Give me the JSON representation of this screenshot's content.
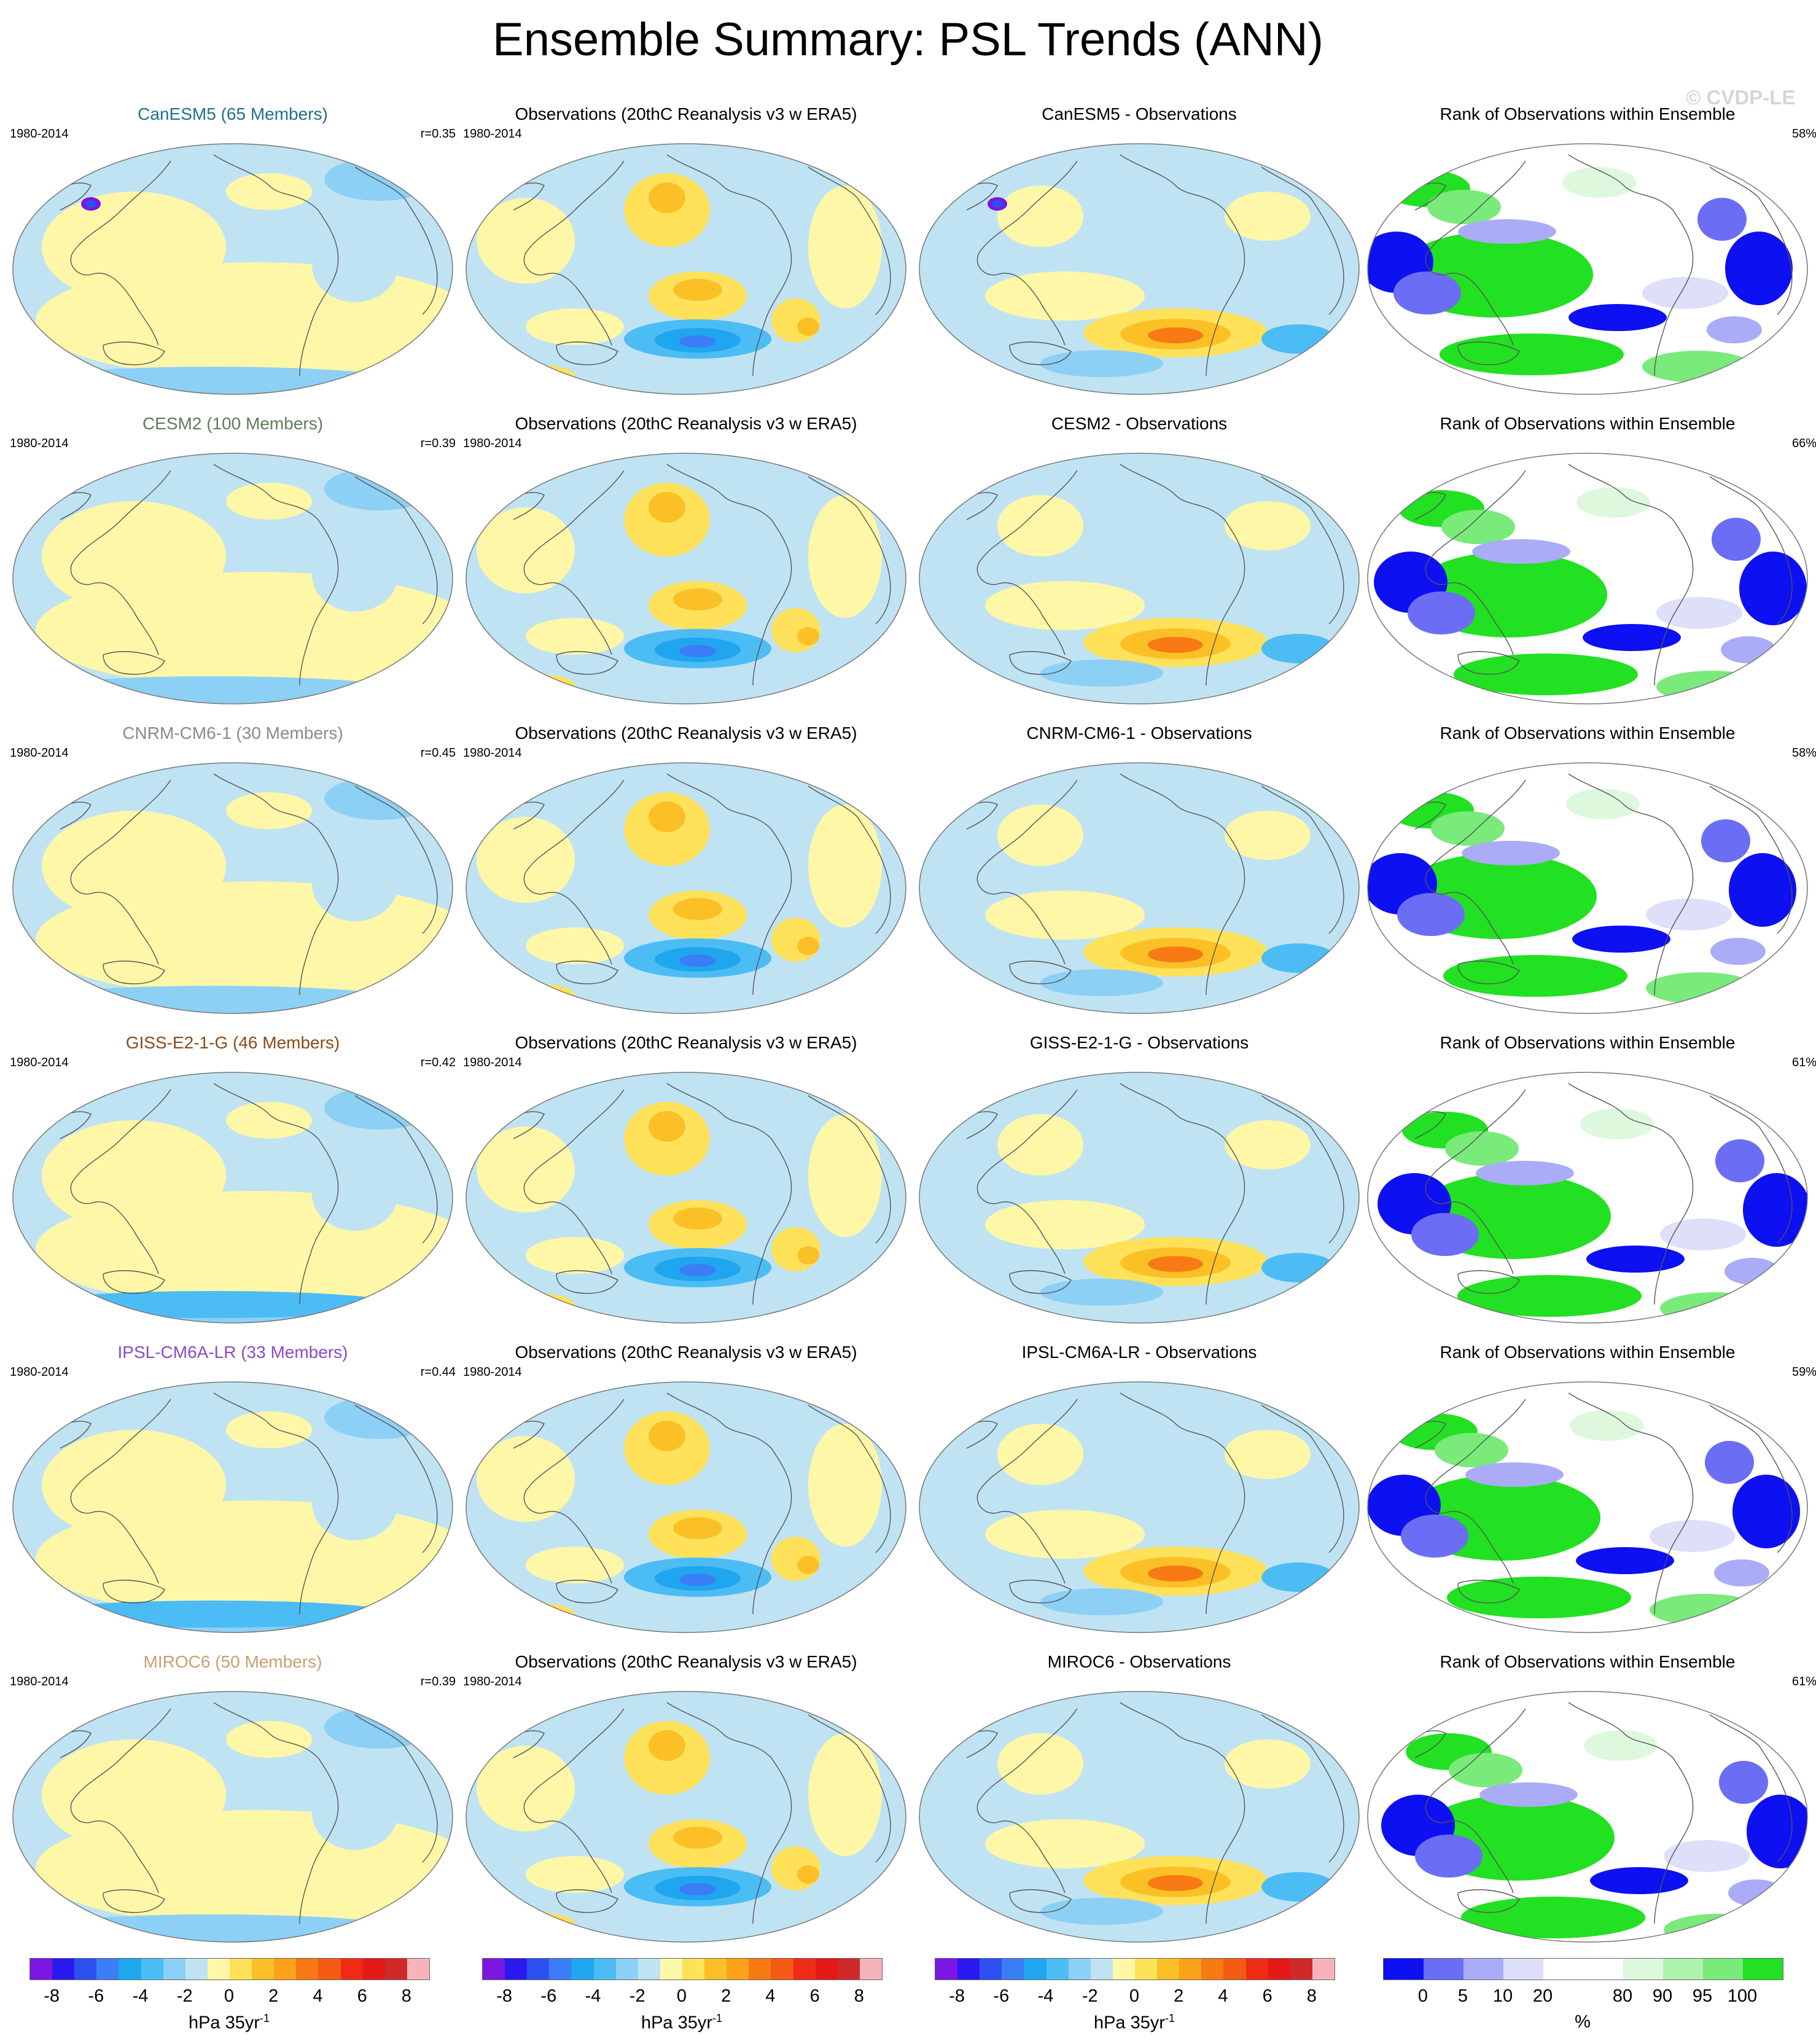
{
  "title": "Ensemble Summary: PSL Trends (ANN)",
  "watermark": "© CVDP-LE",
  "period": "1980-2014",
  "obs_title": "Observations (20thC Reanalysis v3 w ERA5)",
  "rank_title": "Rank of Observations within Ensemble",
  "rows": [
    {
      "model_title": "CanESM5 (65 Members)",
      "model_color": "#22708a",
      "r": "r=0.35",
      "diff_title": "CanESM5 - Observations",
      "pct": "58%"
    },
    {
      "model_title": "CESM2 (100 Members)",
      "model_color": "#5a7f5a",
      "r": "r=0.39",
      "diff_title": "CESM2 - Observations",
      "pct": "66%"
    },
    {
      "model_title": "CNRM-CM6-1 (30 Members)",
      "model_color": "#8a8a8a",
      "r": "r=0.45",
      "diff_title": "CNRM-CM6-1 - Observations",
      "pct": "58%"
    },
    {
      "model_title": "GISS-E2-1-G (46 Members)",
      "model_color": "#8a4a18",
      "r": "r=0.42",
      "diff_title": "GISS-E2-1-G - Observations",
      "pct": "61%"
    },
    {
      "model_title": "IPSL-CM6A-LR (33 Members)",
      "model_color": "#8a4ac8",
      "r": "r=0.44",
      "diff_title": "IPSL-CM6A-LR - Observations",
      "pct": "59%"
    },
    {
      "model_title": "MIROC6 (50 Members)",
      "model_color": "#c8a070",
      "r": "r=0.39",
      "diff_title": "MIROC6 - Observations",
      "pct": "61%"
    }
  ],
  "trend_colorbar": {
    "colors": [
      "#7b16e3",
      "#2a18f0",
      "#2e4ff0",
      "#3a7df5",
      "#1fa6ef",
      "#4cbcf4",
      "#8dd0f5",
      "#bfe3f3",
      "#fff7a8",
      "#ffe259",
      "#fcc027",
      "#fba11a",
      "#f77a14",
      "#f35a14",
      "#ef2b16",
      "#e31a17",
      "#cf2a2a",
      "#f7b3bb"
    ],
    "ticks": [
      "-8",
      "-6",
      "-4",
      "-2",
      "0",
      "2",
      "4",
      "6",
      "8"
    ],
    "label": "hPa 35yr",
    "label_sup": "-1"
  },
  "rank_colorbar": {
    "colors": [
      "#0d10f0",
      "#6b6ef5",
      "#aaacf7",
      "#dedff9",
      "#ffffff",
      "#ffffff",
      "#def8de",
      "#aef2ae",
      "#7aea7a",
      "#22e022"
    ],
    "ticks": [
      "0",
      "5",
      "10",
      "20",
      "80",
      "90",
      "95",
      "100"
    ],
    "label": "%"
  },
  "palette": {
    "trend_neutral_neg": "#bfe3f3",
    "trend_neutral_pos": "#fff7a8",
    "rank_low": "#0d10f0",
    "rank_high": "#22e022"
  }
}
